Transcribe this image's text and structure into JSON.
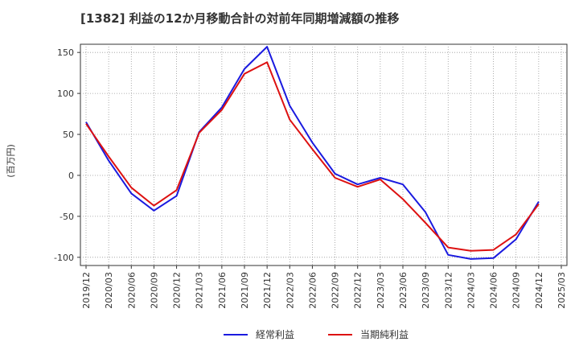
{
  "chart_data": {
    "type": "line",
    "title": "[1382]  利益の12か月移動合計の対前年同期増減額の推移",
    "ylabel": "(百万円)",
    "xlabel": "",
    "ylim": [
      -110,
      160
    ],
    "yticks": [
      150,
      100,
      50,
      0,
      -50,
      -100
    ],
    "grid": true,
    "legend_position": "bottom",
    "categories": [
      "2019/12",
      "2020/03",
      "2020/06",
      "2020/09",
      "2020/12",
      "2021/03",
      "2021/06",
      "2021/09",
      "2021/12",
      "2022/03",
      "2022/06",
      "2022/09",
      "2022/12",
      "2023/03",
      "2023/06",
      "2023/09",
      "2023/12",
      "2024/03",
      "2024/06",
      "2024/09",
      "2024/12",
      "2025/03"
    ],
    "series": [
      {
        "name": "経常利益",
        "color": "#1a1adf",
        "values": [
          65,
          18,
          -22,
          -43,
          -25,
          53,
          83,
          130,
          157,
          85,
          40,
          2,
          -11,
          -3,
          -11,
          -45,
          -97,
          -102,
          -101,
          -78,
          -32,
          null
        ]
      },
      {
        "name": "当期純利益",
        "color": "#dd1111",
        "values": [
          63,
          23,
          -15,
          -37,
          -18,
          52,
          80,
          124,
          138,
          68,
          32,
          -3,
          -14,
          -5,
          -29,
          -58,
          -88,
          -92,
          -91,
          -72,
          -35,
          null
        ]
      }
    ]
  }
}
